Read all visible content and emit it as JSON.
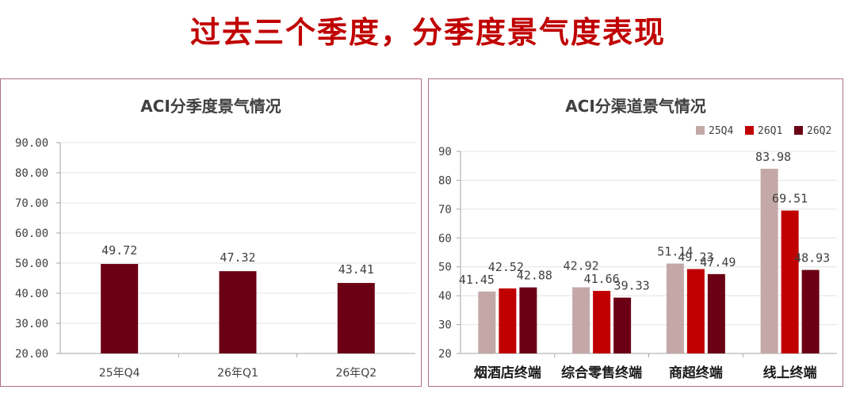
{
  "page": {
    "title": "过去三个季度，分季度景气度表现"
  },
  "chart_data": [
    {
      "type": "bar",
      "title": "ACI分季度景气情况",
      "categories": [
        "25年Q4",
        "26年Q1",
        "26年Q2"
      ],
      "values": [
        49.72,
        47.32,
        43.41
      ],
      "value_labels": [
        "49.72",
        "47.32",
        "43.41"
      ],
      "yticks": [
        "20.00",
        "30.00",
        "40.00",
        "50.00",
        "60.00",
        "70.00",
        "80.00",
        "90.00"
      ],
      "ylim": [
        20,
        90
      ],
      "grid": true,
      "colors": {
        "bar": "#6b0014"
      }
    },
    {
      "type": "bar",
      "title": "ACI分渠道景气情况",
      "categories": [
        "烟酒店终端",
        "综合零售终端",
        "商超终端",
        "线上终端"
      ],
      "series": [
        {
          "name": "25Q4",
          "color": "#c4a8a8",
          "values": [
            41.45,
            42.92,
            51.14,
            83.98
          ],
          "labels": [
            "41.45",
            "42.92",
            "51.14",
            "83.98"
          ]
        },
        {
          "name": "26Q1",
          "color": "#c00000",
          "values": [
            42.52,
            41.66,
            49.23,
            69.51
          ],
          "labels": [
            "42.52",
            "41.66",
            "49.23",
            "69.51"
          ]
        },
        {
          "name": "26Q2",
          "color": "#6b0014",
          "values": [
            42.88,
            39.33,
            47.49,
            48.93
          ],
          "labels": [
            "42.88",
            "39.33",
            "47.49",
            "48.93"
          ]
        }
      ],
      "yticks": [
        "20",
        "30",
        "40",
        "50",
        "60",
        "70",
        "80",
        "90"
      ],
      "ylim": [
        20,
        90
      ],
      "grid": true,
      "legend": "top-right"
    }
  ]
}
